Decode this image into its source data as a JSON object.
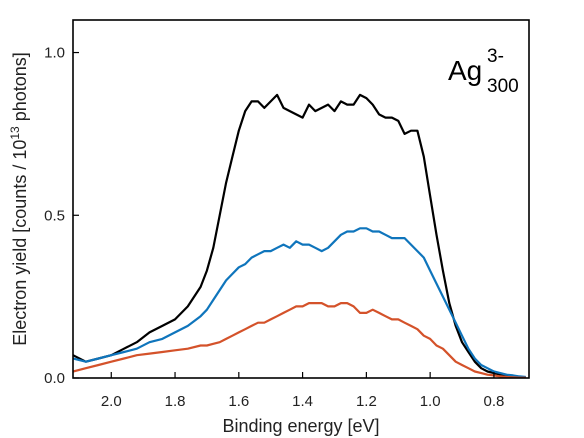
{
  "chart_data": {
    "type": "line",
    "xlabel": "Binding energy [eV]",
    "ylabel_parts": {
      "main": "Electron yield [counts / 10",
      "exp": "13",
      "tail": " photons]"
    },
    "annotation": {
      "base": "Ag",
      "sup": "3-",
      "sub": "300"
    },
    "x_reversed": true,
    "xlim": [
      2.12,
      0.69
    ],
    "ylim": [
      0.0,
      1.1
    ],
    "xticks": [
      2.0,
      1.8,
      1.6,
      1.4,
      1.2,
      1.0,
      0.8
    ],
    "xtick_labels": [
      "2.0",
      "1.8",
      "1.6",
      "1.4",
      "1.2",
      "1.0",
      "0.8"
    ],
    "yticks": [
      0.0,
      0.5,
      1.0
    ],
    "ytick_labels": [
      "0.0",
      "0.5",
      "1.0"
    ],
    "grid": false,
    "legend": "none",
    "series": [
      {
        "color": "#000000",
        "x": [
          2.12,
          2.08,
          2.04,
          2.0,
          1.96,
          1.92,
          1.88,
          1.84,
          1.8,
          1.76,
          1.72,
          1.7,
          1.68,
          1.66,
          1.64,
          1.62,
          1.6,
          1.58,
          1.56,
          1.54,
          1.52,
          1.5,
          1.48,
          1.46,
          1.44,
          1.42,
          1.4,
          1.38,
          1.36,
          1.34,
          1.32,
          1.3,
          1.28,
          1.26,
          1.24,
          1.22,
          1.2,
          1.18,
          1.16,
          1.14,
          1.12,
          1.1,
          1.08,
          1.06,
          1.04,
          1.02,
          1.0,
          0.98,
          0.96,
          0.94,
          0.92,
          0.9,
          0.88,
          0.86,
          0.84,
          0.82,
          0.8,
          0.78,
          0.76,
          0.74,
          0.72,
          0.7
        ],
        "y": [
          0.07,
          0.05,
          0.06,
          0.07,
          0.09,
          0.11,
          0.14,
          0.16,
          0.18,
          0.22,
          0.28,
          0.33,
          0.4,
          0.5,
          0.6,
          0.68,
          0.76,
          0.82,
          0.85,
          0.85,
          0.83,
          0.85,
          0.87,
          0.83,
          0.82,
          0.81,
          0.8,
          0.84,
          0.82,
          0.83,
          0.84,
          0.82,
          0.85,
          0.84,
          0.84,
          0.87,
          0.86,
          0.84,
          0.81,
          0.8,
          0.8,
          0.79,
          0.75,
          0.76,
          0.76,
          0.68,
          0.56,
          0.44,
          0.33,
          0.23,
          0.16,
          0.11,
          0.08,
          0.05,
          0.03,
          0.02,
          0.015,
          0.01,
          0.005,
          0.003,
          0.002,
          0.001
        ]
      },
      {
        "color": "#0f75bc",
        "x": [
          2.12,
          2.08,
          2.04,
          2.0,
          1.96,
          1.92,
          1.88,
          1.84,
          1.8,
          1.76,
          1.72,
          1.7,
          1.68,
          1.66,
          1.64,
          1.62,
          1.6,
          1.58,
          1.56,
          1.54,
          1.52,
          1.5,
          1.48,
          1.46,
          1.44,
          1.42,
          1.4,
          1.38,
          1.36,
          1.34,
          1.32,
          1.3,
          1.28,
          1.26,
          1.24,
          1.22,
          1.2,
          1.18,
          1.16,
          1.14,
          1.12,
          1.1,
          1.08,
          1.06,
          1.04,
          1.02,
          1.0,
          0.98,
          0.96,
          0.94,
          0.92,
          0.9,
          0.88,
          0.86,
          0.84,
          0.82,
          0.8,
          0.78,
          0.76,
          0.74,
          0.72,
          0.7
        ],
        "y": [
          0.06,
          0.05,
          0.06,
          0.07,
          0.08,
          0.09,
          0.11,
          0.12,
          0.14,
          0.16,
          0.19,
          0.21,
          0.24,
          0.27,
          0.3,
          0.32,
          0.34,
          0.35,
          0.37,
          0.38,
          0.39,
          0.39,
          0.4,
          0.41,
          0.4,
          0.42,
          0.41,
          0.41,
          0.4,
          0.39,
          0.4,
          0.42,
          0.44,
          0.45,
          0.45,
          0.46,
          0.46,
          0.45,
          0.45,
          0.44,
          0.43,
          0.43,
          0.43,
          0.41,
          0.39,
          0.37,
          0.33,
          0.29,
          0.25,
          0.21,
          0.17,
          0.13,
          0.09,
          0.06,
          0.04,
          0.03,
          0.02,
          0.015,
          0.01,
          0.008,
          0.005,
          0.003
        ]
      },
      {
        "color": "#d4522a",
        "x": [
          2.12,
          2.08,
          2.04,
          2.0,
          1.96,
          1.92,
          1.88,
          1.84,
          1.8,
          1.76,
          1.72,
          1.7,
          1.68,
          1.66,
          1.64,
          1.62,
          1.6,
          1.58,
          1.56,
          1.54,
          1.52,
          1.5,
          1.48,
          1.46,
          1.44,
          1.42,
          1.4,
          1.38,
          1.36,
          1.34,
          1.32,
          1.3,
          1.28,
          1.26,
          1.24,
          1.22,
          1.2,
          1.18,
          1.16,
          1.14,
          1.12,
          1.1,
          1.08,
          1.06,
          1.04,
          1.02,
          1.0,
          0.98,
          0.96,
          0.94,
          0.92,
          0.9,
          0.88,
          0.86,
          0.84,
          0.82,
          0.8,
          0.78,
          0.76,
          0.74,
          0.72,
          0.7
        ],
        "y": [
          0.02,
          0.03,
          0.04,
          0.05,
          0.06,
          0.07,
          0.075,
          0.08,
          0.085,
          0.09,
          0.1,
          0.1,
          0.105,
          0.11,
          0.12,
          0.13,
          0.14,
          0.15,
          0.16,
          0.17,
          0.17,
          0.18,
          0.19,
          0.2,
          0.21,
          0.22,
          0.22,
          0.23,
          0.23,
          0.23,
          0.22,
          0.22,
          0.23,
          0.23,
          0.22,
          0.2,
          0.2,
          0.21,
          0.2,
          0.19,
          0.18,
          0.18,
          0.17,
          0.16,
          0.15,
          0.13,
          0.12,
          0.1,
          0.09,
          0.07,
          0.05,
          0.04,
          0.03,
          0.02,
          0.015,
          0.01,
          0.008,
          0.005,
          0.003,
          0.002,
          0.001,
          0.001
        ]
      }
    ]
  }
}
